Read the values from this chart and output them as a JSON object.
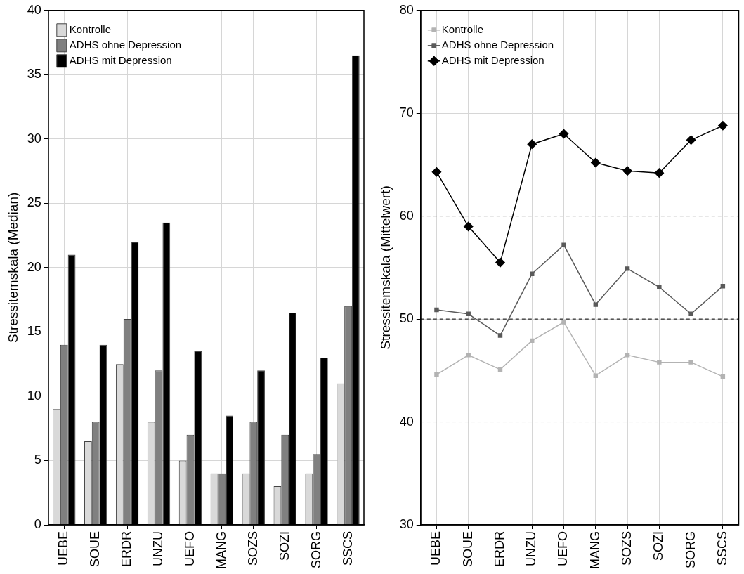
{
  "chart_data": [
    {
      "type": "bar",
      "ylabel": "Stressitemskala (Median)",
      "categories": [
        "UEBE",
        "SOUE",
        "ERDR",
        "UNZU",
        "UEFO",
        "MANG",
        "SOZS",
        "SOZI",
        "SORG",
        "SSCS"
      ],
      "ylim": [
        0,
        40
      ],
      "yticks": [
        0,
        5,
        10,
        15,
        20,
        25,
        30,
        35,
        40
      ],
      "grid": true,
      "legend": "top left",
      "series": [
        {
          "name": "Kontrolle",
          "color": "#d9d9d9",
          "values": [
            9,
            6.5,
            12.5,
            8,
            5,
            4,
            4,
            3,
            4,
            11
          ]
        },
        {
          "name": "ADHS ohne Depression",
          "color": "#808080",
          "values": [
            14,
            8,
            16,
            12,
            7,
            4,
            8,
            7,
            5.5,
            17
          ]
        },
        {
          "name": "ADHS mit Depression",
          "color": "#000000",
          "values": [
            21,
            14,
            22,
            23.5,
            13.5,
            8.5,
            12,
            16.5,
            13,
            36.5
          ]
        }
      ]
    },
    {
      "type": "line",
      "ylabel": "Stressitemskala (Mittelwert)",
      "categories": [
        "UEBE",
        "SOUE",
        "ERDR",
        "UNZU",
        "UEFO",
        "MANG",
        "SOZS",
        "SOZI",
        "SORG",
        "SSCS"
      ],
      "ylim": [
        30,
        80
      ],
      "yticks": [
        30,
        40,
        50,
        60,
        70,
        80
      ],
      "grid": true,
      "legend": "top left",
      "ref_lines": [
        {
          "axis": "y",
          "value": 40,
          "color": "#999999",
          "line_style": "dashed"
        },
        {
          "axis": "y",
          "value": 50,
          "color": "#000000",
          "line_style": "dashed"
        },
        {
          "axis": "y",
          "value": 60,
          "color": "#777777",
          "line_style": "dashed"
        }
      ],
      "series": [
        {
          "name": "Kontrolle",
          "color": "#b3b3b3",
          "marker": "square",
          "values": [
            44.6,
            46.5,
            45.1,
            47.9,
            49.7,
            44.5,
            46.5,
            45.8,
            45.8,
            44.4
          ]
        },
        {
          "name": "ADHS ohne Depression",
          "color": "#5a5a5a",
          "marker": "square",
          "values": [
            50.9,
            50.5,
            48.4,
            54.4,
            57.2,
            51.4,
            54.9,
            53.1,
            50.5,
            53.2
          ]
        },
        {
          "name": "ADHS mit Depression",
          "color": "#000000",
          "marker": "diamond",
          "values": [
            64.3,
            59,
            55.5,
            67,
            68,
            65.2,
            64.4,
            64.2,
            67.4,
            68.8
          ]
        }
      ]
    }
  ]
}
